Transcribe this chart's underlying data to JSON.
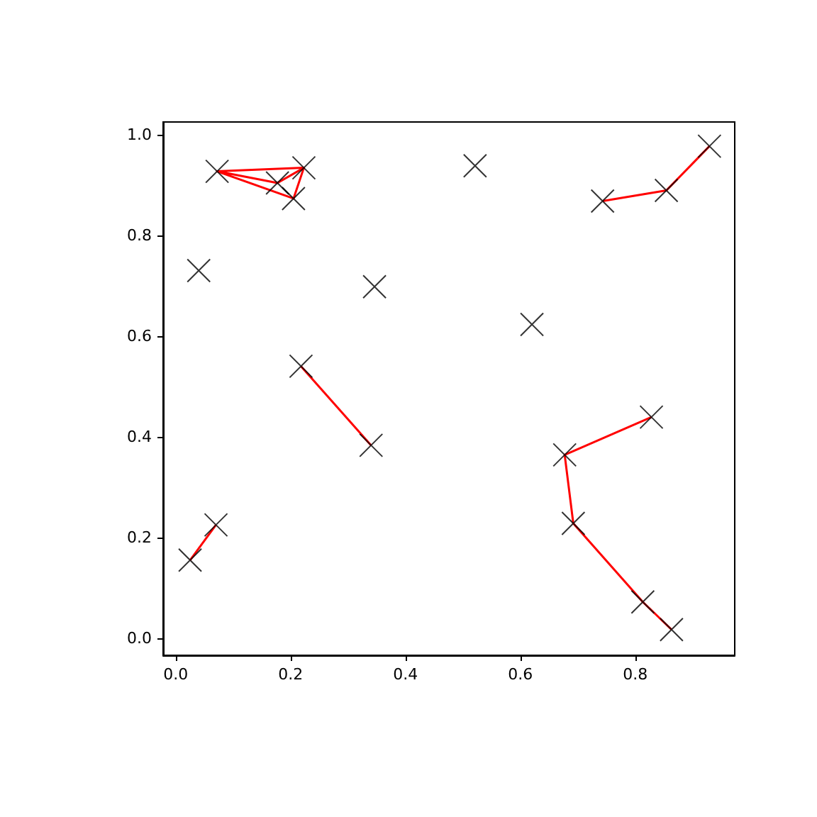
{
  "chart_data": {
    "type": "scatter",
    "xlim": [
      -0.022,
      0.973
    ],
    "ylim": [
      -0.034,
      1.025
    ],
    "xticks": [
      {
        "value": 0,
        "label": "0.0"
      },
      {
        "value": 0.2,
        "label": "0.2"
      },
      {
        "value": 0.4,
        "label": "0.4"
      },
      {
        "value": 0.6,
        "label": "0.6"
      },
      {
        "value": 0.8,
        "label": "0.8"
      }
    ],
    "yticks": [
      {
        "value": 0,
        "label": "0.0"
      },
      {
        "value": 0.2,
        "label": "0.2"
      },
      {
        "value": 0.4,
        "label": "0.4"
      },
      {
        "value": 0.6,
        "label": "0.6"
      },
      {
        "value": 0.8,
        "label": "0.8"
      },
      {
        "value": 1,
        "label": "1.0"
      }
    ],
    "grid": false,
    "series": [
      {
        "type": "line",
        "color": "#ff0000",
        "marker": "none",
        "x": [
          0.072,
          0.223,
          0.205,
          0.072,
          0.177,
          0.223
        ],
        "values": [
          0.927,
          0.934,
          0.873,
          0.927,
          0.904,
          0.934
        ]
      },
      {
        "type": "line",
        "color": "#ff0000",
        "marker": "none",
        "x": [
          0.743,
          0.854,
          0.929
        ],
        "values": [
          0.868,
          0.889,
          0.977
        ]
      },
      {
        "type": "line",
        "color": "#ff0000",
        "marker": "none",
        "x": [
          0.218,
          0.34
        ],
        "values": [
          0.54,
          0.383
        ]
      },
      {
        "type": "line",
        "color": "#ff0000",
        "marker": "none",
        "x": [
          0.025,
          0.07
        ],
        "values": [
          0.155,
          0.225
        ]
      },
      {
        "type": "line",
        "color": "#ff0000",
        "marker": "none",
        "x": [
          0.828,
          0.677,
          0.692,
          0.813,
          0.863
        ],
        "values": [
          0.439,
          0.364,
          0.228,
          0.072,
          0.017
        ]
      },
      {
        "color": "#000000",
        "marker": "cross",
        "x": [
          0.072,
          0.223,
          0.177,
          0.205,
          0.04,
          0.346,
          0.521,
          0.62,
          0.743,
          0.854,
          0.929,
          0.218,
          0.34,
          0.025,
          0.07,
          0.828,
          0.677,
          0.692,
          0.813,
          0.863
        ],
        "values": [
          0.927,
          0.934,
          0.904,
          0.873,
          0.73,
          0.698,
          0.938,
          0.623,
          0.868,
          0.889,
          0.977,
          0.54,
          0.383,
          0.155,
          0.225,
          0.439,
          0.364,
          0.228,
          0.072,
          0.017
        ]
      }
    ]
  }
}
